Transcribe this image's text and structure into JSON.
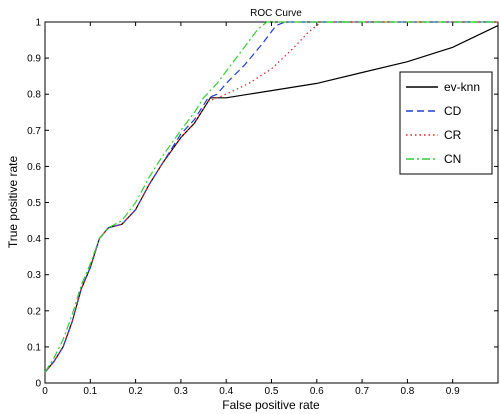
{
  "chart_data": {
    "type": "line",
    "title": "ROC Curve",
    "xlabel": "False positive rate",
    "ylabel": "True positive rate",
    "xlim": [
      0,
      1
    ],
    "ylim": [
      0,
      1
    ],
    "xticks": [
      "0",
      "0.1",
      "0.2",
      "0.3",
      "0.4",
      "0.5",
      "0.6",
      "0.7",
      "0.8",
      "0.9"
    ],
    "yticks": [
      "0",
      "0.1",
      "0.2",
      "0.3",
      "0.4",
      "0.5",
      "0.6",
      "0.7",
      "0.8",
      "0.9",
      "1"
    ],
    "grid": false,
    "legend_position": "right",
    "series": [
      {
        "name": "ev-knn",
        "color": "#000000",
        "dash": "solid",
        "points": [
          [
            0,
            0.03
          ],
          [
            0.02,
            0.06
          ],
          [
            0.04,
            0.1
          ],
          [
            0.06,
            0.17
          ],
          [
            0.08,
            0.26
          ],
          [
            0.1,
            0.32
          ],
          [
            0.12,
            0.4
          ],
          [
            0.14,
            0.43
          ],
          [
            0.17,
            0.44
          ],
          [
            0.2,
            0.48
          ],
          [
            0.23,
            0.55
          ],
          [
            0.26,
            0.61
          ],
          [
            0.3,
            0.68
          ],
          [
            0.33,
            0.72
          ],
          [
            0.36,
            0.78
          ],
          [
            0.365,
            0.79
          ],
          [
            0.4,
            0.79
          ],
          [
            0.45,
            0.8
          ],
          [
            0.5,
            0.81
          ],
          [
            0.6,
            0.83
          ],
          [
            0.7,
            0.86
          ],
          [
            0.8,
            0.89
          ],
          [
            0.9,
            0.93
          ],
          [
            0.95,
            0.96
          ],
          [
            1.0,
            0.99
          ]
        ]
      },
      {
        "name": "CD",
        "color": "#1f3fd6",
        "dash": "7,4",
        "points": [
          [
            0,
            0.03
          ],
          [
            0.02,
            0.06
          ],
          [
            0.04,
            0.1
          ],
          [
            0.06,
            0.17
          ],
          [
            0.08,
            0.26
          ],
          [
            0.1,
            0.32
          ],
          [
            0.12,
            0.4
          ],
          [
            0.14,
            0.43
          ],
          [
            0.17,
            0.44
          ],
          [
            0.2,
            0.48
          ],
          [
            0.23,
            0.55
          ],
          [
            0.26,
            0.61
          ],
          [
            0.3,
            0.69
          ],
          [
            0.33,
            0.73
          ],
          [
            0.36,
            0.79
          ],
          [
            0.38,
            0.8
          ],
          [
            0.4,
            0.83
          ],
          [
            0.44,
            0.88
          ],
          [
            0.48,
            0.94
          ],
          [
            0.51,
            0.99
          ],
          [
            0.53,
            1.0
          ],
          [
            1.0,
            1.0
          ]
        ]
      },
      {
        "name": "CR",
        "color": "#e02020",
        "dash": "1.5,3",
        "points": [
          [
            0,
            0.03
          ],
          [
            0.02,
            0.06
          ],
          [
            0.04,
            0.1
          ],
          [
            0.06,
            0.17
          ],
          [
            0.08,
            0.26
          ],
          [
            0.1,
            0.32
          ],
          [
            0.12,
            0.4
          ],
          [
            0.14,
            0.43
          ],
          [
            0.17,
            0.44
          ],
          [
            0.2,
            0.48
          ],
          [
            0.23,
            0.55
          ],
          [
            0.26,
            0.61
          ],
          [
            0.3,
            0.68
          ],
          [
            0.33,
            0.72
          ],
          [
            0.36,
            0.78
          ],
          [
            0.4,
            0.8
          ],
          [
            0.45,
            0.83
          ],
          [
            0.5,
            0.87
          ],
          [
            0.55,
            0.93
          ],
          [
            0.58,
            0.97
          ],
          [
            0.61,
            1.0
          ],
          [
            1.0,
            1.0
          ]
        ]
      },
      {
        "name": "CN",
        "color": "#33cc33",
        "dash": "8,3,2,3",
        "points": [
          [
            0,
            0.03
          ],
          [
            0.02,
            0.07
          ],
          [
            0.04,
            0.12
          ],
          [
            0.06,
            0.19
          ],
          [
            0.08,
            0.27
          ],
          [
            0.1,
            0.33
          ],
          [
            0.12,
            0.4
          ],
          [
            0.14,
            0.43
          ],
          [
            0.17,
            0.45
          ],
          [
            0.2,
            0.5
          ],
          [
            0.23,
            0.57
          ],
          [
            0.26,
            0.63
          ],
          [
            0.3,
            0.7
          ],
          [
            0.33,
            0.75
          ],
          [
            0.35,
            0.79
          ],
          [
            0.38,
            0.83
          ],
          [
            0.41,
            0.88
          ],
          [
            0.44,
            0.93
          ],
          [
            0.47,
            0.98
          ],
          [
            0.49,
            1.0
          ],
          [
            1.0,
            1.0
          ]
        ]
      }
    ]
  }
}
